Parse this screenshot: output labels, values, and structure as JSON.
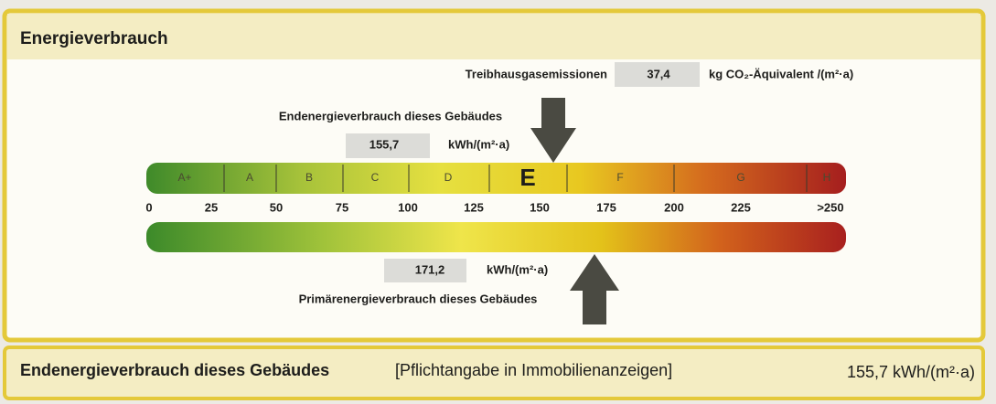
{
  "header": {
    "title": "Energieverbrauch"
  },
  "emissions": {
    "label": "Treibhausgasemissionen",
    "value": "37,4",
    "unit": "kg CO₂-Äquivalent /(m²·a)"
  },
  "final_energy": {
    "label": "Endenergieverbrauch dieses Gebäudes",
    "value": "155,7",
    "unit": "kWh/(m²·a)"
  },
  "scale": {
    "classes": [
      "A+",
      "A",
      "B",
      "C",
      "D",
      "E",
      "F",
      "G",
      "H"
    ],
    "ticks": [
      "0",
      "25",
      "50",
      "75",
      "100",
      "125",
      "150",
      "175",
      "200",
      "225",
      ">250"
    ]
  },
  "primary_energy": {
    "label": "Primärenergieverbrauch dieses Gebäudes",
    "value": "171,2",
    "unit": "kWh/(m²·a)"
  },
  "footer": {
    "label": "Endenergieverbrauch dieses Gebäudes",
    "note": "[Pflichtangabe in Immobilienanzeigen]",
    "value": "155,7 kWh/(m²·a)"
  }
}
